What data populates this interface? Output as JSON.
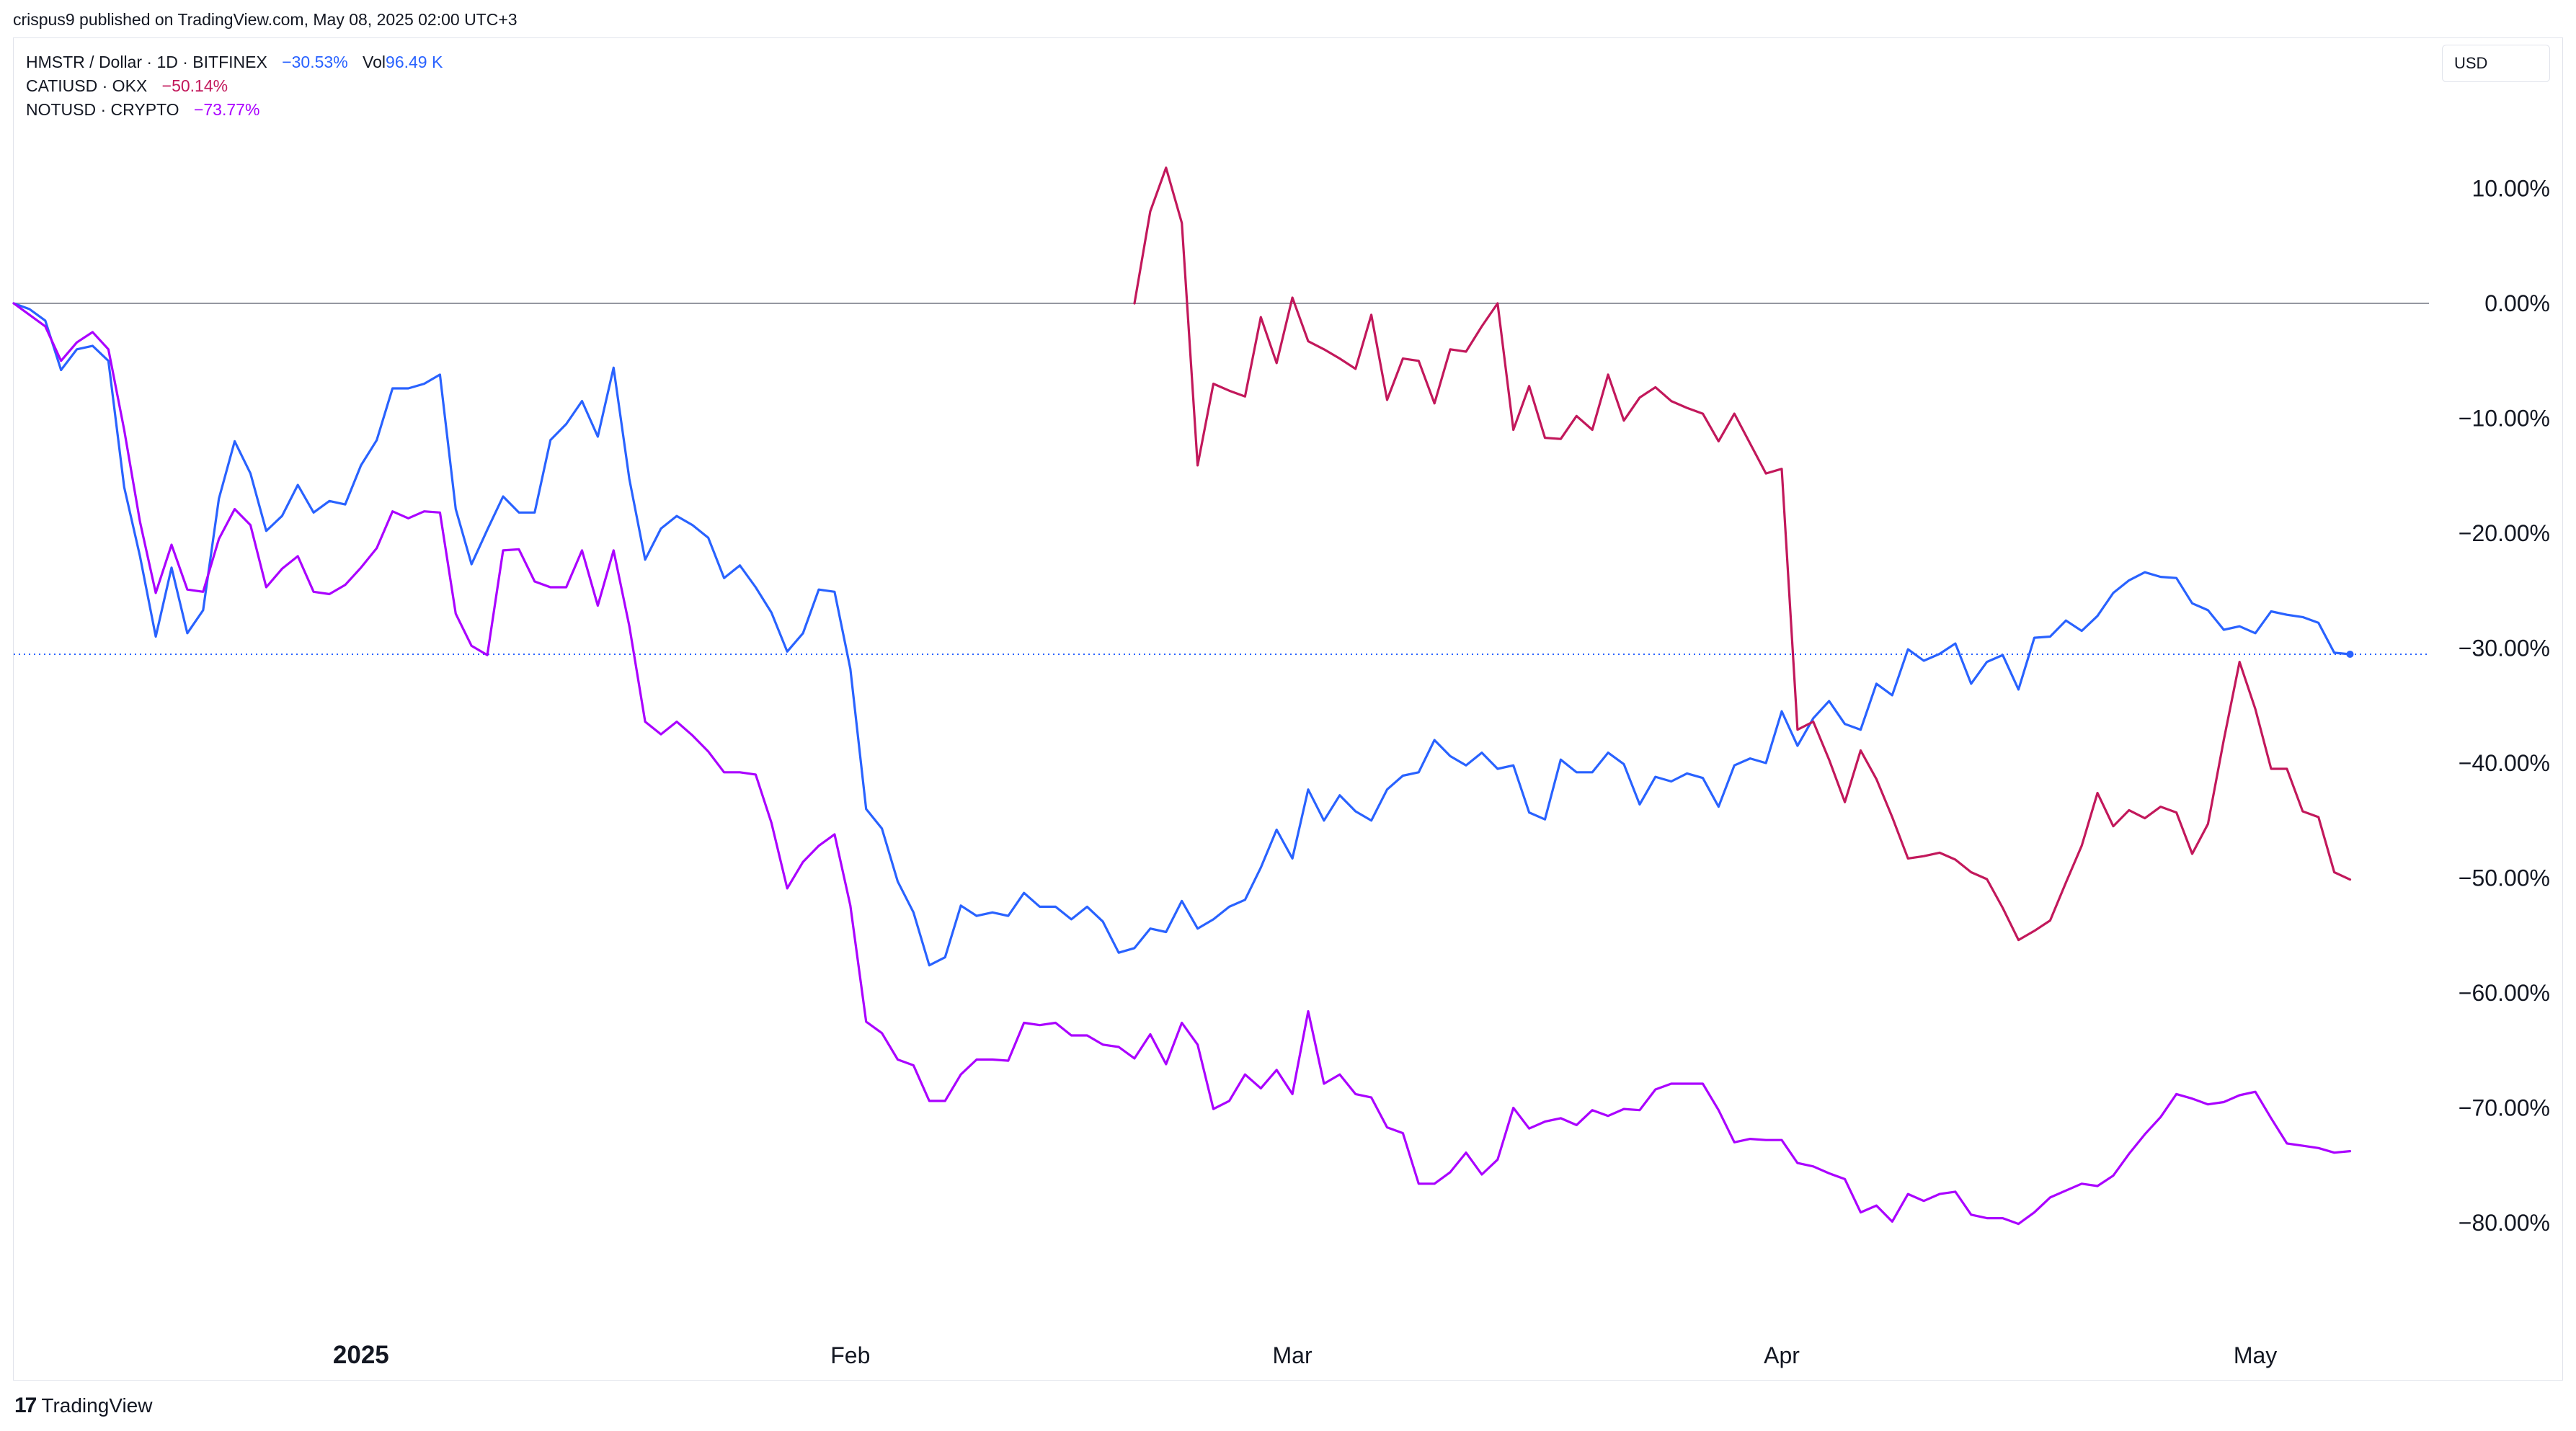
{
  "attribution": "crispus9 published on TradingView.com, May 08, 2025 02:00 UTC+3",
  "legend": [
    {
      "label": "HMSTR / Dollar · 1D · BITFINEX",
      "value": "−30.53%",
      "vol_label": "Vol",
      "vol_value": "96.49 K",
      "color": "#2962ff"
    },
    {
      "label": "CATIUSD · OKX",
      "value": "−50.14%",
      "color": "#c2185b"
    },
    {
      "label": "NOTUSD · CRYPTO",
      "value": "−73.77%",
      "color": "#aa00ff"
    }
  ],
  "currency_button": "USD",
  "footer_logo": "TradingView",
  "logo_mark": "17",
  "chart_data": {
    "type": "line",
    "x_unit": "date",
    "x_range": [
      "2024-12-10",
      "2025-05-12"
    ],
    "ylim": [
      -90,
      15
    ],
    "y_unit": "%",
    "y_ticks": [
      "10.00%",
      "0.00%",
      "−10.00%",
      "−20.00%",
      "−30.00%",
      "−40.00%",
      "−50.00%",
      "−60.00%",
      "−70.00%",
      "−80.00%"
    ],
    "x_ticks": [
      {
        "label": "2025",
        "date": "2025-01-01",
        "bold": true
      },
      {
        "label": "Feb",
        "date": "2025-02-01",
        "bold": false
      },
      {
        "label": "Mar",
        "date": "2025-03-01",
        "bold": false
      },
      {
        "label": "Apr",
        "date": "2025-04-01",
        "bold": false
      },
      {
        "label": "May",
        "date": "2025-05-01",
        "bold": false
      }
    ],
    "baseline": 0,
    "last_value_line": -30.53,
    "series": [
      {
        "name": "HMSTR / Dollar",
        "color": "#2962ff",
        "start": "2024-12-10",
        "values": [
          0,
          -0.5,
          -1.5,
          -5.8,
          -4,
          -3.7,
          -5,
          -16,
          -22,
          -29,
          -23,
          -28.7,
          -26.7,
          -17,
          -12,
          -14.8,
          -19.8,
          -18.5,
          -15.8,
          -18.2,
          -17.2,
          -17.5,
          -14.1,
          -11.9,
          -7.4,
          -7.4,
          -7,
          -6.2,
          -17.9,
          -22.7,
          -19.7,
          -16.8,
          -18.2,
          -18.2,
          -11.9,
          -10.5,
          -8.5,
          -11.6,
          -5.6,
          -15.3,
          -22.3,
          -19.6,
          -18.5,
          -19.3,
          -20.4,
          -23.9,
          -22.8,
          -24.7,
          -26.9,
          -30.3,
          -28.7,
          -24.9,
          -25.1,
          -31.8,
          -44,
          -45.7,
          -50.3,
          -53,
          -57.6,
          -56.9,
          -52.4,
          -53.3,
          -53,
          -53.3,
          -51.3,
          -52.5,
          -52.5,
          -53.6,
          -52.5,
          -53.8,
          -56.5,
          -56.1,
          -54.4,
          -54.7,
          -52,
          -54.4,
          -53.6,
          -52.5,
          -51.9,
          -49.1,
          -45.8,
          -48.3,
          -42.3,
          -45,
          -42.8,
          -44.2,
          -45,
          -42.3,
          -41.1,
          -40.8,
          -38,
          -39.4,
          -40.2,
          -39.1,
          -40.5,
          -40.2,
          -44.3,
          -44.9,
          -39.7,
          -40.8,
          -40.8,
          -39.1,
          -40.1,
          -43.6,
          -41.2,
          -41.6,
          -40.9,
          -41.3,
          -43.8,
          -40.2,
          -39.6,
          -40,
          -35.5,
          -38.5,
          -36.1,
          -34.6,
          -36.6,
          -37.1,
          -33.1,
          -34.1,
          -30.1,
          -31.1,
          -30.5,
          -29.6,
          -33.1,
          -31.2,
          -30.6,
          -33.6,
          -29.1,
          -29,
          -27.6,
          -28.5,
          -27.2,
          -25.2,
          -24.1,
          -23.4,
          -23.8,
          -23.9,
          -26.1,
          -26.7,
          -28.4,
          -28.1,
          -28.7,
          -26.8,
          -27.1,
          -27.3,
          -27.8,
          -30.4,
          -30.53
        ]
      },
      {
        "name": "CATIUSD · OKX",
        "color": "#c2185b",
        "start": "2025-02-19",
        "values": [
          0,
          8,
          11.8,
          7,
          -14.1,
          -7,
          -7.6,
          -8.1,
          -1.2,
          -5.2,
          0.5,
          -3.3,
          -4,
          -4.8,
          -5.7,
          -1,
          -8.4,
          -4.8,
          -5,
          -8.7,
          -4,
          -4.2,
          -2,
          0,
          -11,
          -7.2,
          -11.7,
          -11.8,
          -9.8,
          -11,
          -6.2,
          -10.2,
          -8.2,
          -7.3,
          -8.5,
          -9.1,
          -9.6,
          -12,
          -9.6,
          -12.2,
          -14.8,
          -14.4,
          -37.1,
          -36.4,
          -39.7,
          -43.4,
          -38.9,
          -41.4,
          -44.7,
          -48.3,
          -48.1,
          -47.8,
          -48.4,
          -49.5,
          -50.1,
          -52.6,
          -55.4,
          -54.6,
          -53.7,
          -50.4,
          -47.2,
          -42.6,
          -45.5,
          -44.1,
          -44.8,
          -43.8,
          -44.3,
          -47.9,
          -45.3,
          -38,
          -31.2,
          -35.3,
          -40.5,
          -40.5,
          -44.2,
          -44.7,
          -49.5,
          -50.14
        ]
      },
      {
        "name": "NOTUSD · CRYPTO",
        "color": "#aa00ff",
        "start": "2024-12-10",
        "values": [
          0,
          -1,
          -2,
          -5,
          -3.4,
          -2.5,
          -4,
          -11,
          -19,
          -25.2,
          -21,
          -24.9,
          -25.1,
          -20.5,
          -17.9,
          -19.3,
          -24.7,
          -23.1,
          -22,
          -25.1,
          -25.3,
          -24.5,
          -23,
          -21.3,
          -18.1,
          -18.7,
          -18.1,
          -18.2,
          -27,
          -29.8,
          -30.6,
          -21.5,
          -21.4,
          -24.2,
          -24.7,
          -24.7,
          -21.5,
          -26.3,
          -21.5,
          -28.1,
          -36.4,
          -37.5,
          -36.4,
          -37.6,
          -39,
          -40.8,
          -40.8,
          -41,
          -45.2,
          -50.9,
          -48.6,
          -47.2,
          -46.2,
          -52.4,
          -62.5,
          -63.5,
          -65.8,
          -66.3,
          -69.4,
          -69.4,
          -67.1,
          -65.8,
          -65.8,
          -65.9,
          -62.6,
          -62.8,
          -62.6,
          -63.7,
          -63.7,
          -64.5,
          -64.7,
          -65.7,
          -63.6,
          -66.2,
          -62.6,
          -64.5,
          -70.1,
          -69.4,
          -67.1,
          -68.3,
          -66.7,
          -68.8,
          -61.6,
          -67.9,
          -67.1,
          -68.8,
          -69.1,
          -71.7,
          -72.2,
          -76.6,
          -76.6,
          -75.6,
          -73.9,
          -75.8,
          -74.5,
          -70,
          -71.8,
          -71.2,
          -70.9,
          -71.5,
          -70.2,
          -70.7,
          -70.1,
          -70.2,
          -68.4,
          -67.9,
          -67.9,
          -67.9,
          -70.2,
          -73,
          -72.7,
          -72.8,
          -72.8,
          -74.8,
          -75.1,
          -75.7,
          -76.2,
          -79.1,
          -78.5,
          -79.9,
          -77.5,
          -78.1,
          -77.5,
          -77.3,
          -79.3,
          -79.6,
          -79.6,
          -80.1,
          -79.1,
          -77.8,
          -77.2,
          -76.6,
          -76.8,
          -75.9,
          -74,
          -72.3,
          -70.8,
          -68.8,
          -69.2,
          -69.7,
          -69.5,
          -68.9,
          -68.6,
          -70.9,
          -73.1,
          -73.3,
          -73.5,
          -73.9,
          -73.77
        ]
      }
    ]
  }
}
